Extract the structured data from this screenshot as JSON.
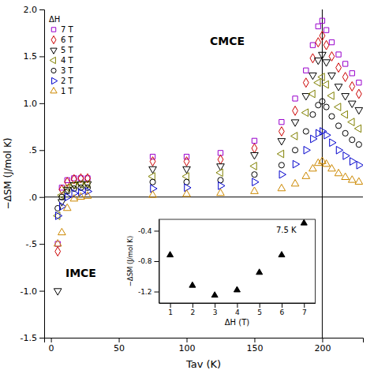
{
  "chart_data": [
    {
      "type": "scatter",
      "xlabel": "Tav (K)",
      "ylabel": "−ΔSM (J/mol K)",
      "xlim": [
        -5,
        230
      ],
      "ylim": [
        -1.5,
        2.0
      ],
      "xticks": [
        0,
        50,
        100,
        150,
        200
      ],
      "yticks": [
        -1.5,
        {
          "value": -1.0,
          "label": "-1.0"
        },
        {
          "value": -0.5,
          "label": "-.5"
        },
        {
          "value": 0.0,
          "label": ".0"
        },
        {
          "value": 0.5,
          "label": ".5"
        },
        {
          "value": 1.0,
          "label": "1.0"
        },
        1.5,
        {
          "value": 2.0,
          "label": "2.0"
        }
      ],
      "legend": "upper left",
      "legend_title": "ΔH",
      "x": [
        5,
        8,
        12,
        17,
        22,
        27,
        75,
        100,
        125,
        150,
        170,
        180,
        188,
        193,
        197,
        200,
        203,
        207,
        212,
        217,
        222,
        227
      ],
      "series": [
        {
          "name": "7 T",
          "color": "#9900CC",
          "marker": "square",
          "values": [
            -0.5,
            0.1,
            0.18,
            0.2,
            0.2,
            0.2,
            0.43,
            0.43,
            0.47,
            0.6,
            0.8,
            1.05,
            1.35,
            1.62,
            1.82,
            1.88,
            1.78,
            1.65,
            1.52,
            1.42,
            1.32,
            1.22
          ]
        },
        {
          "name": "6 T",
          "color": "#CC0000",
          "marker": "diamond",
          "values": [
            -0.58,
            0.08,
            0.16,
            0.19,
            0.2,
            0.2,
            0.38,
            0.38,
            0.4,
            0.52,
            0.7,
            0.92,
            1.22,
            1.48,
            1.65,
            1.72,
            1.62,
            1.5,
            1.38,
            1.28,
            1.18,
            1.1
          ]
        },
        {
          "name": "5 T",
          "color": "#000000",
          "marker": "triangle-down",
          "values": [
            -1.0,
            -0.05,
            0.08,
            0.13,
            0.14,
            0.14,
            0.3,
            0.3,
            0.33,
            0.45,
            0.6,
            0.8,
            1.08,
            1.3,
            1.46,
            1.52,
            1.44,
            1.3,
            1.18,
            1.08,
            1.0,
            0.93
          ]
        },
        {
          "name": "4 T",
          "color": "#808000",
          "marker": "triangle-left",
          "values": [
            -0.2,
            0.02,
            0.1,
            0.13,
            0.14,
            0.14,
            0.22,
            0.22,
            0.26,
            0.33,
            0.46,
            0.65,
            0.9,
            1.1,
            1.22,
            1.28,
            1.2,
            1.08,
            0.96,
            0.88,
            0.8,
            0.73
          ]
        },
        {
          "name": "3 T",
          "color": "#000000",
          "marker": "circle",
          "values": [
            -0.12,
            0.0,
            0.06,
            0.09,
            0.1,
            0.1,
            0.16,
            0.16,
            0.18,
            0.24,
            0.34,
            0.5,
            0.7,
            0.88,
            0.98,
            1.02,
            0.96,
            0.86,
            0.76,
            0.68,
            0.61,
            0.56
          ]
        },
        {
          "name": "2 T",
          "color": "#0000CC",
          "marker": "triangle-right",
          "values": [
            -0.2,
            -0.1,
            0.0,
            0.04,
            0.05,
            0.06,
            0.09,
            0.1,
            0.12,
            0.16,
            0.24,
            0.35,
            0.5,
            0.62,
            0.68,
            0.7,
            0.66,
            0.58,
            0.5,
            0.44,
            0.38,
            0.34
          ]
        },
        {
          "name": "1 T",
          "color": "#CC8800",
          "marker": "triangle-up",
          "values": [
            -0.5,
            -0.38,
            -0.12,
            -0.02,
            0.0,
            0.01,
            0.02,
            0.03,
            0.04,
            0.06,
            0.09,
            0.14,
            0.22,
            0.3,
            0.36,
            0.38,
            0.35,
            0.3,
            0.25,
            0.21,
            0.18,
            0.16
          ]
        }
      ],
      "reference_lines": [
        {
          "axis": "y",
          "value": 0
        },
        {
          "axis": "x",
          "value": 200
        }
      ],
      "annotations": [
        {
          "text": "CMCE",
          "x": 130,
          "y": 1.62
        },
        {
          "text": "IMCE",
          "x": 22,
          "y": -0.85
        }
      ]
    },
    {
      "type": "scatter",
      "xlabel": "ΔH (T)",
      "ylabel": "−ΔSM (J/mol K)",
      "xlim": [
        0.5,
        7.5
      ],
      "ylim": [
        -1.35,
        -0.25
      ],
      "xticks": [
        1,
        2,
        3,
        4,
        5,
        6,
        7
      ],
      "yticks": [
        -1.2,
        -0.8,
        -0.4
      ],
      "x": [
        1,
        2,
        3,
        4,
        5,
        6,
        7
      ],
      "values": [
        -0.72,
        -1.12,
        -1.25,
        -1.18,
        -0.95,
        -0.72,
        -0.3
      ],
      "color": "#000000",
      "marker": "triangle-up",
      "annotations": [
        {
          "text": "7.5 K"
        }
      ]
    }
  ]
}
